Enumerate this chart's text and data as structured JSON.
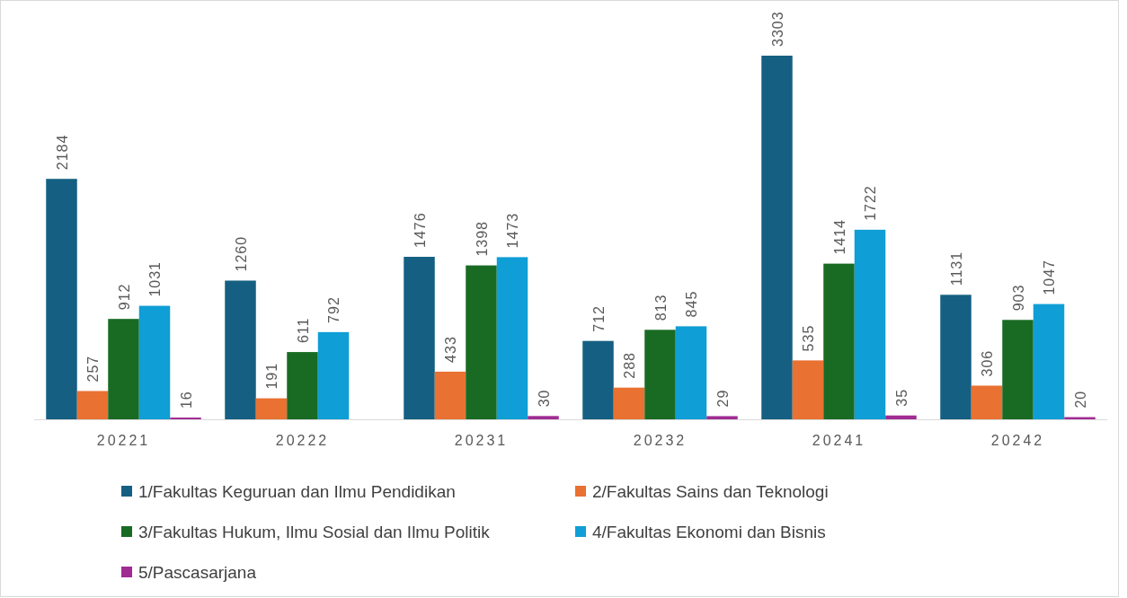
{
  "chart_data": {
    "type": "bar",
    "categories": [
      "20221",
      "20222",
      "20231",
      "20232",
      "20241",
      "20242"
    ],
    "series": [
      {
        "name": "1/Fakultas Keguruan dan Ilmu Pendidikan",
        "color": "#156082",
        "values": [
          2184,
          1260,
          1476,
          712,
          3303,
          1131
        ]
      },
      {
        "name": "2/Fakultas Sains dan Teknologi",
        "color": "#e97132",
        "values": [
          257,
          191,
          433,
          288,
          535,
          306
        ]
      },
      {
        "name": "3/Fakultas Hukum, Ilmu Sosial dan Ilmu Politik",
        "color": "#196b24",
        "values": [
          912,
          611,
          1398,
          813,
          1414,
          903
        ]
      },
      {
        "name": "4/Fakultas Ekonomi dan Bisnis",
        "color": "#0f9ed5",
        "values": [
          1031,
          792,
          1473,
          845,
          1722,
          1047
        ]
      },
      {
        "name": "5/Pascasarjana",
        "color": "#a02b93",
        "values": [
          16,
          null,
          30,
          29,
          35,
          20
        ]
      }
    ],
    "data_labels": true,
    "legend": "bottom"
  }
}
